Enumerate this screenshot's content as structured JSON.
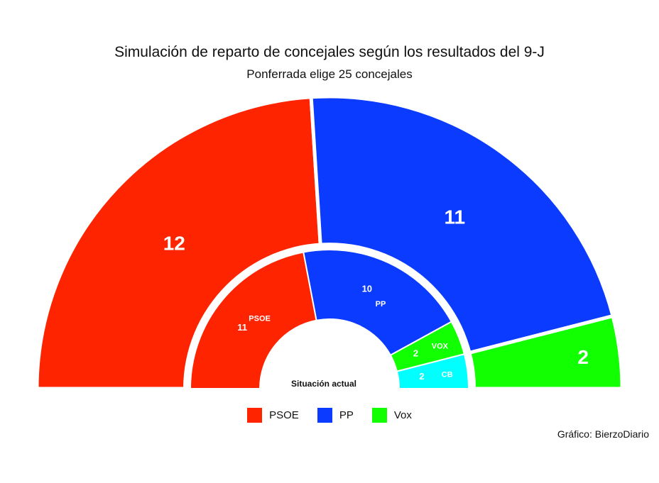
{
  "title": "Simulación de reparto de concejales según los resultados del 9-J",
  "subtitle": "Ponferrada elige 25 concejales",
  "credit": "Gráfico: BierzoDiario",
  "chart_data": {
    "type": "pie",
    "total_seats": 25,
    "rings": [
      {
        "name": "",
        "center_label": "",
        "slices": [
          {
            "party": "PSOE",
            "value": 12,
            "label": "12",
            "color": "#ff2400"
          },
          {
            "party": "PP",
            "value": 11,
            "label": "11",
            "color": "#0a3bff"
          },
          {
            "party": "Vox",
            "value": 2,
            "label": "2",
            "color": "#11ff00"
          }
        ]
      },
      {
        "name": "Situación actual",
        "center_label": "Situación actual",
        "slices": [
          {
            "party": "PSOE",
            "value": 11,
            "label": "11",
            "color": "#ff2400"
          },
          {
            "party": "PP",
            "value": 10,
            "label": "10",
            "color": "#0a3bff"
          },
          {
            "party": "VOX",
            "value": 2,
            "label": "2",
            "color": "#11ff00"
          },
          {
            "party": "CB",
            "value": 2,
            "label": "2",
            "color": "#00ffff"
          }
        ]
      }
    ],
    "legend": {
      "position": "bottom",
      "entries": [
        {
          "label": "PSOE",
          "color": "#ff2400"
        },
        {
          "label": "PP",
          "color": "#0a3bff"
        },
        {
          "label": "Vox",
          "color": "#11ff00"
        }
      ]
    }
  }
}
